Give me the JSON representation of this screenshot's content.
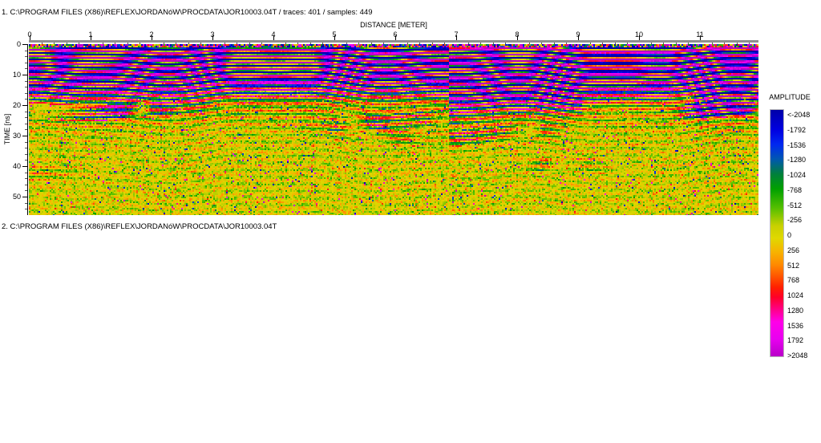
{
  "sections": {
    "section1": {
      "header": "1. C:\\PROGRAM FILES (X86)\\REFLEX\\JORDANóW\\PROCDATA\\JOR10003.04T / traces: 401 / samples: 449"
    },
    "section2": {
      "header": "2. C:\\PROGRAM FILES (X86)\\REFLEX\\JORDANóW\\PROCDATA\\JOR10003.04T"
    }
  },
  "chart_data": {
    "type": "heatmap",
    "title": "",
    "xlabel": "DISTANCE [METER]",
    "ylabel": "TIME [ns]",
    "x_ticks": [
      "0",
      "1",
      "2",
      "3",
      "4",
      "5",
      "6",
      "7",
      "8",
      "9",
      "10",
      "11"
    ],
    "x_minor_step_meter": 0.2,
    "x_range_meter": [
      0,
      11.97
    ],
    "y_ticks": [
      "0",
      "10",
      "20",
      "30",
      "40",
      "50"
    ],
    "y_minor_step_ns": 2,
    "y_range_ns": [
      0,
      56
    ],
    "traces": 401,
    "samples": 449,
    "grid": false,
    "legend_position": "right",
    "colorbar": {
      "title": "AMPLITUDE",
      "tick_labels": [
        "<-2048",
        "-1792",
        "-1536",
        "-1280",
        "-1024",
        "-768",
        "-512",
        "-256",
        "0",
        "256",
        "512",
        "768",
        "1024",
        "1280",
        "1536",
        "1792",
        ">2048"
      ],
      "amplitude_clip": 2048,
      "palette_stops": [
        [
          0.0,
          "#0000A8"
        ],
        [
          0.08,
          "#0000E0"
        ],
        [
          0.14,
          "#0028F0"
        ],
        [
          0.2,
          "#0058B0"
        ],
        [
          0.26,
          "#00803C"
        ],
        [
          0.32,
          "#00A000"
        ],
        [
          0.4,
          "#58C000"
        ],
        [
          0.47,
          "#C8D000"
        ],
        [
          0.52,
          "#E0D800"
        ],
        [
          0.58,
          "#F8B000"
        ],
        [
          0.63,
          "#FF8800"
        ],
        [
          0.68,
          "#FF5000"
        ],
        [
          0.72,
          "#FF2000"
        ],
        [
          0.76,
          "#FF0028"
        ],
        [
          0.81,
          "#FF0088"
        ],
        [
          0.86,
          "#FF00E8"
        ],
        [
          0.93,
          "#E800F0"
        ],
        [
          1.0,
          "#B800C8"
        ]
      ]
    },
    "content_description": {
      "near_surface": "alternating magenta/navy horizontal ringing bands 0-13 ns",
      "transition_zone": "green/red/yellow wiggly reflections 13-27 ns",
      "deep_zone": "yellow speckle noise with green/orange/red dots 27-56 ns",
      "vertical_seam_meter": 6.9
    }
  }
}
